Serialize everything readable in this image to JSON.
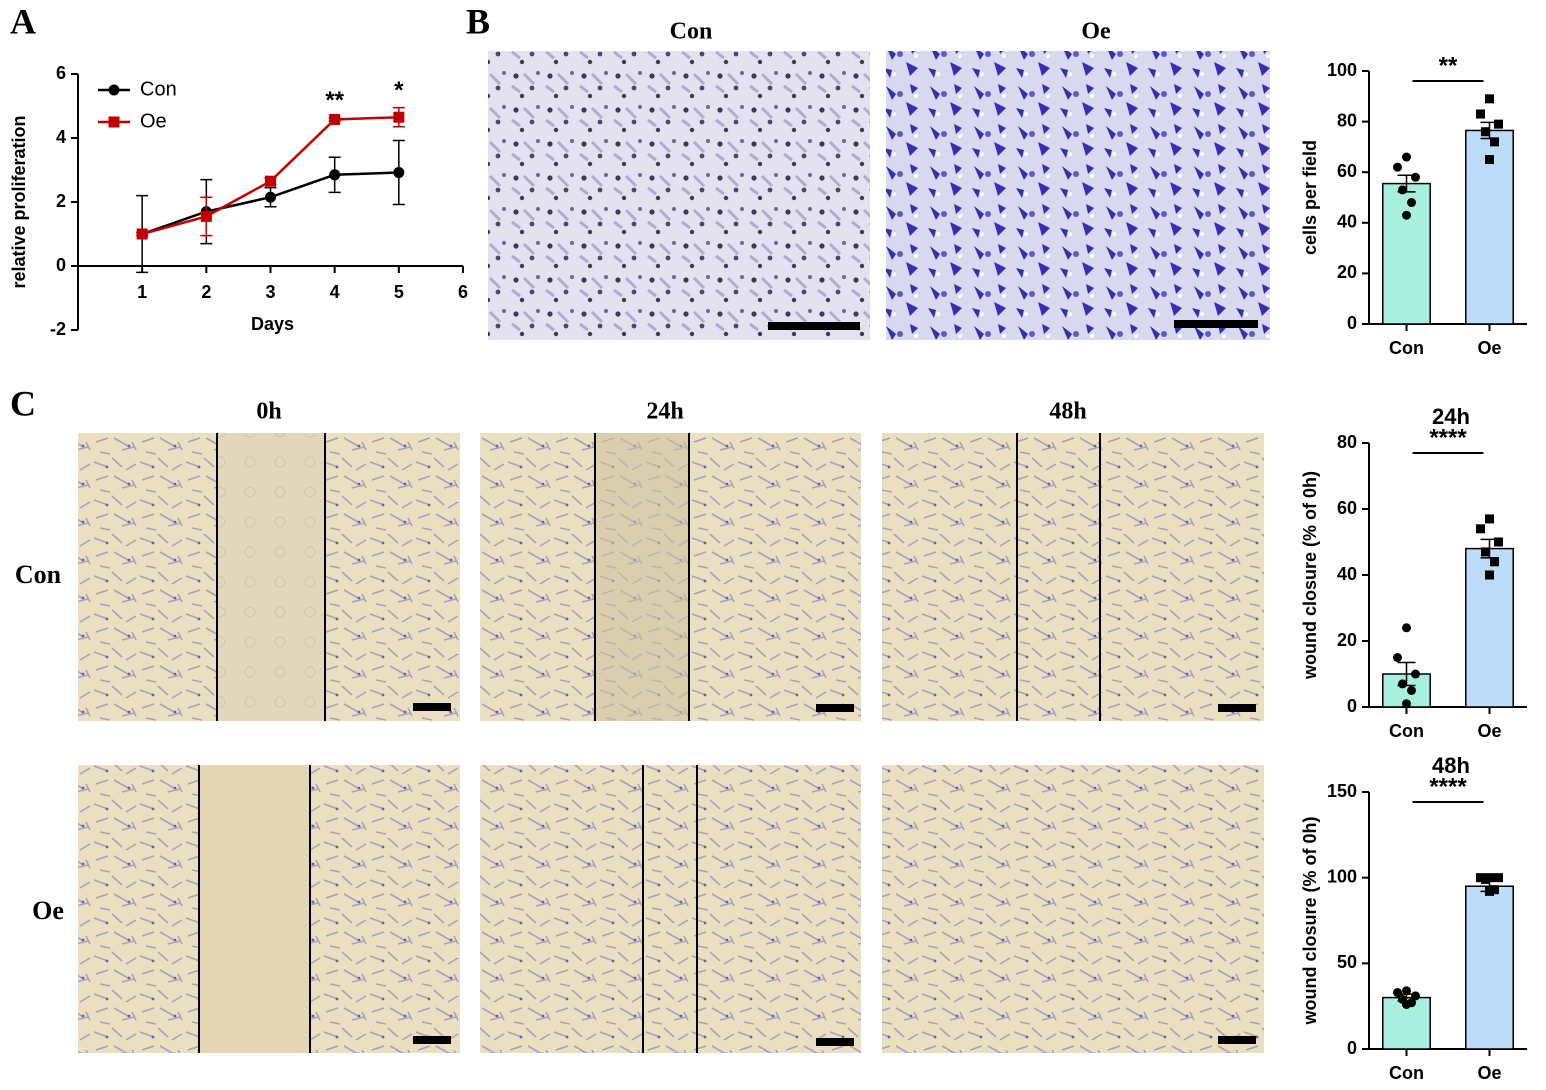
{
  "panel_labels": [
    "A",
    "B",
    "C"
  ],
  "micrographs": {
    "B": {
      "titles": [
        "Con",
        "Oe"
      ]
    },
    "C": {
      "columns": [
        "0h",
        "24h",
        "48h"
      ],
      "rows": [
        "Con",
        "Oe"
      ]
    }
  },
  "chart_data": [
    {
      "type": "line",
      "xlabel": "Days",
      "ylabel": "relative proliferation",
      "x": [
        1,
        2,
        3,
        4,
        5
      ],
      "xlim": [
        0,
        6
      ],
      "xticks": [
        1,
        2,
        3,
        4,
        5,
        6
      ],
      "ylim": [
        -2,
        6
      ],
      "yticks": [
        -2,
        0,
        2,
        4,
        6
      ],
      "legend": "upper left",
      "series": [
        {
          "name": "Con",
          "color": "#000000",
          "marker": "circle",
          "values": [
            1,
            1.7,
            2.15,
            2.85,
            2.92
          ],
          "errors": [
            1.2,
            1.0,
            0.3,
            0.55,
            1.0
          ]
        },
        {
          "name": "Oe",
          "color": "#c00000",
          "marker": "square",
          "values": [
            1,
            1.55,
            2.65,
            4.58,
            4.65
          ],
          "errors": [
            0.05,
            0.6,
            0.1,
            0.05,
            0.3
          ]
        }
      ],
      "annotations": [
        {
          "text": "**",
          "x": 4
        },
        {
          "text": "*",
          "x": 5
        }
      ]
    },
    {
      "type": "bar",
      "ylabel": "cells per field",
      "categories": [
        "Con",
        "Oe"
      ],
      "values": [
        55.5,
        76.5
      ],
      "errors": [
        3.3,
        3.2
      ],
      "colors": [
        "#a8f0dd",
        "#bcdcf8"
      ],
      "points": [
        [
          66,
          62,
          58,
          53,
          48,
          43
        ],
        [
          89,
          83,
          79,
          76,
          72,
          65
        ]
      ],
      "ylim": [
        0,
        100
      ],
      "yticks": [
        0,
        20,
        40,
        60,
        80,
        100
      ],
      "annotation": "**"
    },
    {
      "type": "bar",
      "title": "24h",
      "ylabel": "wound closure (% of 0h)",
      "categories": [
        "Con",
        "Oe"
      ],
      "values": [
        10,
        48
      ],
      "errors": [
        3.5,
        2.8
      ],
      "colors": [
        "#a8f0dd",
        "#bcdcf8"
      ],
      "points": [
        [
          24,
          15,
          10,
          7,
          5,
          1
        ],
        [
          57,
          54,
          50,
          47,
          44,
          40
        ]
      ],
      "ylim": [
        0,
        80
      ],
      "yticks": [
        0,
        20,
        40,
        60,
        80
      ],
      "annotation": "****"
    },
    {
      "type": "bar",
      "title": "48h",
      "ylabel": "wound closure (% of 0h)",
      "categories": [
        "Con",
        "Oe"
      ],
      "values": [
        30,
        95
      ],
      "errors": [
        2,
        3
      ],
      "colors": [
        "#a8f0dd",
        "#bcdcf8"
      ],
      "points": [
        [
          34,
          33,
          31,
          29,
          27,
          26
        ],
        [
          100,
          100,
          100,
          99,
          93,
          92
        ]
      ],
      "ylim": [
        0,
        150
      ],
      "yticks": [
        0,
        50,
        100,
        150
      ],
      "annotation": "****"
    }
  ]
}
